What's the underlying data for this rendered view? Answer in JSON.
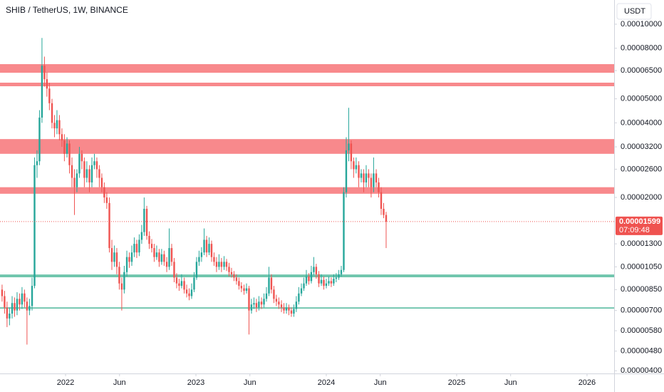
{
  "chart_data": {
    "type": "candlestick",
    "title": "SHIB / TetherUS, 1W, BINANCE",
    "currency": "USDT",
    "log_scale": true,
    "up_color": "#26a69a",
    "down_color": "#ef5350",
    "xlim": [
      2021.497,
      2026.208
    ],
    "xticks": [
      {
        "value": 2022,
        "label": "2022"
      },
      {
        "value": 2022.414,
        "label": "Jun"
      },
      {
        "value": 2023,
        "label": "2023"
      },
      {
        "value": 2023.414,
        "label": "Jun"
      },
      {
        "value": 2024,
        "label": "2024"
      },
      {
        "value": 2024.414,
        "label": "Jun"
      },
      {
        "value": 2025,
        "label": "2025"
      },
      {
        "value": 2025.414,
        "label": "Jun"
      },
      {
        "value": 2026,
        "label": "2026"
      }
    ],
    "ylim": [
      3.9e-06,
      0.0001252
    ],
    "yticks": [
      {
        "value": 0.0001,
        "label": "0.00010000"
      },
      {
        "value": 8e-05,
        "label": "0.00008000"
      },
      {
        "value": 6.5e-05,
        "label": "0.00006500"
      },
      {
        "value": 5e-05,
        "label": "0.00005000"
      },
      {
        "value": 4e-05,
        "label": "0.00004000"
      },
      {
        "value": 3.2e-05,
        "label": "0.00003200"
      },
      {
        "value": 2.6e-05,
        "label": "0.00002600"
      },
      {
        "value": 2e-05,
        "label": "0.00002000"
      },
      {
        "value": 1.3e-05,
        "label": "0.00001300"
      },
      {
        "value": 1.05e-05,
        "label": "0.00001050"
      },
      {
        "value": 8.5e-06,
        "label": "0.00000850"
      },
      {
        "value": 7e-06,
        "label": "0.00000700"
      },
      {
        "value": 5.8e-06,
        "label": "0.00000580"
      },
      {
        "value": 4.8e-06,
        "label": "0.00000480"
      },
      {
        "value": 4e-06,
        "label": "0.00000400"
      }
    ],
    "zones": [
      {
        "low": 6.37e-05,
        "high": 6.9e-05,
        "color": "#f77c80"
      },
      {
        "low": 5.62e-05,
        "high": 5.81e-05,
        "color": "#f77c80"
      },
      {
        "low": 3e-05,
        "high": 3.44e-05,
        "color": "#f77c80"
      },
      {
        "low": 2.07e-05,
        "high": 2.2e-05,
        "color": "#f77c80"
      },
      {
        "low": 9.53e-06,
        "high": 9.78e-06,
        "color": "#5fbfa4"
      },
      {
        "low": 7.12e-06,
        "high": 7.21e-06,
        "color": "#5fbfa4"
      }
    ],
    "last_price": {
      "value": 1.599e-05,
      "label": "0.00001599"
    },
    "countdown": "07:09:48",
    "x": [
      2021.513,
      2021.532,
      2021.551,
      2021.57,
      2021.59,
      2021.609,
      2021.628,
      2021.647,
      2021.666,
      2021.685,
      2021.704,
      2021.723,
      2021.743,
      2021.762,
      2021.781,
      2021.8,
      2021.819,
      2021.838,
      2021.857,
      2021.876,
      2021.896,
      2021.915,
      2021.934,
      2021.953,
      2021.972,
      2021.991,
      2022.011,
      2022.03,
      2022.049,
      2022.068,
      2022.087,
      2022.106,
      2022.125,
      2022.144,
      2022.163,
      2022.183,
      2022.202,
      2022.221,
      2022.24,
      2022.259,
      2022.278,
      2022.297,
      2022.316,
      2022.336,
      2022.355,
      2022.374,
      2022.393,
      2022.412,
      2022.431,
      2022.45,
      2022.47,
      2022.489,
      2022.508,
      2022.527,
      2022.546,
      2022.565,
      2022.584,
      2022.603,
      2022.623,
      2022.642,
      2022.661,
      2022.68,
      2022.699,
      2022.718,
      2022.737,
      2022.756,
      2022.776,
      2022.795,
      2022.814,
      2022.833,
      2022.852,
      2022.871,
      2022.89,
      2022.91,
      2022.929,
      2022.948,
      2022.967,
      2022.986,
      2023.005,
      2023.024,
      2023.043,
      2023.063,
      2023.082,
      2023.101,
      2023.12,
      2023.139,
      2023.158,
      2023.177,
      2023.196,
      2023.216,
      2023.235,
      2023.254,
      2023.273,
      2023.292,
      2023.311,
      2023.33,
      2023.349,
      2023.369,
      2023.388,
      2023.407,
      2023.426,
      2023.445,
      2023.464,
      2023.483,
      2023.503,
      2023.522,
      2023.541,
      2023.56,
      2023.579,
      2023.598,
      2023.617,
      2023.636,
      2023.656,
      2023.675,
      2023.694,
      2023.713,
      2023.732,
      2023.751,
      2023.77,
      2023.789,
      2023.809,
      2023.828,
      2023.847,
      2023.866,
      2023.885,
      2023.904,
      2023.923,
      2023.943,
      2023.962,
      2023.981,
      2024.0,
      2024.019,
      2024.038,
      2024.057,
      2024.076,
      2024.096,
      2024.115,
      2024.134,
      2024.153,
      2024.172,
      2024.191,
      2024.21,
      2024.229,
      2024.249,
      2024.268,
      2024.287,
      2024.306,
      2024.325,
      2024.344,
      2024.363,
      2024.383,
      2024.402,
      2024.421,
      2024.44,
      2024.459
    ],
    "ohlc": [
      [
        8.5e-06,
        8.9e-06,
        7.6e-06,
        8e-06
      ],
      [
        8e-06,
        8.4e-06,
        6.8e-06,
        7.2e-06
      ],
      [
        7.2e-06,
        7.6e-06,
        6e-06,
        6.5e-06
      ],
      [
        6.5e-06,
        7.2e-06,
        6.1e-06,
        6.8e-06
      ],
      [
        6.8e-06,
        8e-06,
        6.5e-06,
        7.5e-06
      ],
      [
        7.5e-06,
        7.9e-06,
        6.6e-06,
        7e-06
      ],
      [
        7e-06,
        8.3e-06,
        6.7e-06,
        7.8e-06
      ],
      [
        7.8e-06,
        8.2e-06,
        7e-06,
        7.4e-06
      ],
      [
        7.4e-06,
        8.7e-06,
        7.1e-06,
        8.2e-06
      ],
      [
        8.2e-06,
        8.5e-06,
        7.2e-06,
        7.6e-06
      ],
      [
        7.6e-06,
        7.9e-06,
        5.1e-06,
        7e-06
      ],
      [
        7e-06,
        7.8e-06,
        6.7e-06,
        7.3e-06
      ],
      [
        7.3e-06,
        9.5e-06,
        7e-06,
        8.8e-06
      ],
      [
        8.8e-06,
        2.9e-05,
        8.6e-06,
        2.7e-05
      ],
      [
        2.7e-05,
        3.1e-05,
        2.4e-05,
        2.8e-05
      ],
      [
        2.8e-05,
        4.5e-05,
        2.7e-05,
        4.2e-05
      ],
      [
        4.2e-05,
        8.8e-05,
        4e-05,
        6.8e-05
      ],
      [
        6.8e-05,
        7.4e-05,
        5.6e-05,
        6e-05
      ],
      [
        6e-05,
        6.4e-05,
        5.1e-05,
        5.5e-05
      ],
      [
        5.5e-05,
        5.8e-05,
        4.5e-05,
        4.8e-05
      ],
      [
        4.8e-05,
        5e-05,
        3.8e-05,
        4e-05
      ],
      [
        4e-05,
        4.3e-05,
        3.5e-05,
        3.8e-05
      ],
      [
        3.8e-05,
        4.5e-05,
        3.6e-05,
        4.1e-05
      ],
      [
        4.1e-05,
        4.3e-05,
        3.4e-05,
        3.6e-05
      ],
      [
        3.6e-05,
        3.8e-05,
        3.2e-05,
        3.4e-05
      ],
      [
        3.4e-05,
        3.6e-05,
        2.8e-05,
        3e-05
      ],
      [
        3e-05,
        3.5e-05,
        2.9e-05,
        3.3e-05
      ],
      [
        3.3e-05,
        3.4e-05,
        2.5e-05,
        2.7e-05
      ],
      [
        2.7e-05,
        2.9e-05,
        2.2e-05,
        2.4e-05
      ],
      [
        2.4e-05,
        2.6e-05,
        1.7e-05,
        2.2e-05
      ],
      [
        2.2e-05,
        2.6e-05,
        2.1e-05,
        2.5e-05
      ],
      [
        2.5e-05,
        3.2e-05,
        2.4e-05,
        3e-05
      ],
      [
        3e-05,
        3.1e-05,
        2.6e-05,
        2.8e-05
      ],
      [
        2.8e-05,
        2.9e-05,
        2.2e-05,
        2.4e-05
      ],
      [
        2.4e-05,
        2.8e-05,
        2.3e-05,
        2.6e-05
      ],
      [
        2.6e-05,
        2.7e-05,
        2.1e-05,
        2.3e-05
      ],
      [
        2.3e-05,
        2.9e-05,
        2.2e-05,
        2.7e-05
      ],
      [
        2.7e-05,
        3e-05,
        2.6e-05,
        2.8e-05
      ],
      [
        2.8e-05,
        2.9e-05,
        2.4e-05,
        2.6e-05
      ],
      [
        2.6e-05,
        2.7e-05,
        2.2e-05,
        2.4e-05
      ],
      [
        2.4e-05,
        2.5e-05,
        2.1e-05,
        2.2e-05
      ],
      [
        2.2e-05,
        2.3e-05,
        1.9e-05,
        2e-05
      ],
      [
        2e-05,
        2.1e-05,
        1.8e-05,
        1.9e-05
      ],
      [
        1.9e-05,
        2e-05,
        1.2e-05,
        1.25e-05
      ],
      [
        1.25e-05,
        1.35e-05,
        1.02e-05,
        1.1e-05
      ],
      [
        1.1e-05,
        1.28e-05,
        1.05e-05,
        1.2e-05
      ],
      [
        1.2e-05,
        1.25e-05,
        9.8e-06,
        1.05e-05
      ],
      [
        1.05e-05,
        1.1e-05,
        8.5e-06,
        9e-06
      ],
      [
        9e-06,
        9.5e-06,
        7e-06,
        8.5e-06
      ],
      [
        8.5e-06,
        1.06e-05,
        8.2e-06,
        1e-05
      ],
      [
        1e-05,
        1.22e-05,
        9.6e-06,
        1.15e-05
      ],
      [
        1.15e-05,
        1.2e-05,
        1.04e-05,
        1.1e-05
      ],
      [
        1.1e-05,
        1.28e-05,
        1.06e-05,
        1.2e-05
      ],
      [
        1.2e-05,
        1.38e-05,
        1.15e-05,
        1.3e-05
      ],
      [
        1.3e-05,
        1.35e-05,
        1.14e-05,
        1.2e-05
      ],
      [
        1.2e-05,
        1.42e-05,
        1.16e-05,
        1.35e-05
      ],
      [
        1.35e-05,
        1.55e-05,
        1.3e-05,
        1.45e-05
      ],
      [
        1.45e-05,
        2e-05,
        1.4e-05,
        1.8e-05
      ],
      [
        1.8e-05,
        1.85e-05,
        1.35e-05,
        1.4e-05
      ],
      [
        1.4e-05,
        1.46e-05,
        1.24e-05,
        1.3e-05
      ],
      [
        1.3e-05,
        1.36e-05,
        1.2e-05,
        1.25e-05
      ],
      [
        1.25e-05,
        1.3e-05,
        1.1e-05,
        1.15e-05
      ],
      [
        1.15e-05,
        1.28e-05,
        1.12e-05,
        1.2e-05
      ],
      [
        1.2e-05,
        1.24e-05,
        1.05e-05,
        1.1e-05
      ],
      [
        1.1e-05,
        1.24e-05,
        1.07e-05,
        1.18e-05
      ],
      [
        1.18e-05,
        1.22e-05,
        1.06e-05,
        1.1e-05
      ],
      [
        1.1e-05,
        1.15e-05,
        1e-05,
        1.05e-05
      ],
      [
        1.05e-05,
        1.5e-05,
        1.02e-05,
        1.25e-05
      ],
      [
        1.25e-05,
        1.3e-05,
        1.06e-05,
        1.1e-05
      ],
      [
        1.1e-05,
        1.14e-05,
        9.1e-06,
        9.5e-06
      ],
      [
        9.5e-06,
        9.9e-06,
        8.6e-06,
        9e-06
      ],
      [
        9e-06,
        9.4e-06,
        8.4e-06,
        8.8e-06
      ],
      [
        8.8e-06,
        9.8e-06,
        8.6e-06,
        9.2e-06
      ],
      [
        9.2e-06,
        9.5e-06,
        8.2e-06,
        8.5e-06
      ],
      [
        8.5e-06,
        8.9e-06,
        7.9e-06,
        8.2e-06
      ],
      [
        8.2e-06,
        8.6e-06,
        7.7e-06,
        8e-06
      ],
      [
        8e-06,
        9e-06,
        7.8e-06,
        8.5e-06
      ],
      [
        8.5e-06,
        1e-05,
        8.3e-06,
        9.5e-06
      ],
      [
        9.5e-06,
        1.15e-05,
        9.3e-06,
        1.1e-05
      ],
      [
        1.1e-05,
        1.22e-05,
        1.06e-05,
        1.15e-05
      ],
      [
        1.15e-05,
        1.26e-05,
        1.1e-05,
        1.2e-05
      ],
      [
        1.2e-05,
        1.5e-05,
        1.17e-05,
        1.35e-05
      ],
      [
        1.35e-05,
        1.4e-05,
        1.15e-05,
        1.2e-05
      ],
      [
        1.2e-05,
        1.38e-05,
        1.17e-05,
        1.3e-05
      ],
      [
        1.3e-05,
        1.34e-05,
        1.1e-05,
        1.15e-05
      ],
      [
        1.15e-05,
        1.2e-05,
        1.06e-05,
        1.1e-05
      ],
      [
        1.1e-05,
        1.15e-05,
        1e-05,
        1.05e-05
      ],
      [
        1.05e-05,
        1.18e-05,
        1.02e-05,
        1.1e-05
      ],
      [
        1.1e-05,
        1.14e-05,
        1e-05,
        1.05e-05
      ],
      [
        1.05e-05,
        1.16e-05,
        1.02e-05,
        1.1e-05
      ],
      [
        1.1e-05,
        1.13e-05,
        1.01e-05,
        1.05e-05
      ],
      [
        1.05e-05,
        1.09e-05,
        9.6e-06,
        1e-05
      ],
      [
        1e-05,
        1.04e-05,
        9.5e-06,
        9.8e-06
      ],
      [
        9.8e-06,
        1.01e-05,
        9.2e-06,
        9.5e-06
      ],
      [
        9.5e-06,
        9.8e-06,
        8.9e-06,
        9.2e-06
      ],
      [
        9.2e-06,
        9.5e-06,
        8.5e-06,
        8.8e-06
      ],
      [
        8.8e-06,
        9.1e-06,
        8.3e-06,
        8.6e-06
      ],
      [
        8.6e-06,
        8.9e-06,
        8.1e-06,
        8.4e-06
      ],
      [
        8.4e-06,
        9e-06,
        8.2e-06,
        8.6e-06
      ],
      [
        8.6e-06,
        8.8e-06,
        5.6e-06,
        7e-06
      ],
      [
        7e-06,
        7.8e-06,
        6.8e-06,
        7.4e-06
      ],
      [
        7.4e-06,
        7.9e-06,
        7.1e-06,
        7.5e-06
      ],
      [
        7.5e-06,
        7.8e-06,
        6.9e-06,
        7.2e-06
      ],
      [
        7.2e-06,
        8e-06,
        7e-06,
        7.6e-06
      ],
      [
        7.6e-06,
        7.9e-06,
        7.1e-06,
        7.4e-06
      ],
      [
        7.4e-06,
        8.2e-06,
        7.2e-06,
        7.8e-06
      ],
      [
        7.8e-06,
        8.7e-06,
        7.6e-06,
        8.2e-06
      ],
      [
        8.2e-06,
        1.05e-05,
        8e-06,
        9.5e-06
      ],
      [
        9.5e-06,
        9.8e-06,
        8.2e-06,
        8.5e-06
      ],
      [
        8.5e-06,
        8.8e-06,
        7.5e-06,
        7.8e-06
      ],
      [
        7.8e-06,
        8.1e-06,
        7.3e-06,
        7.6e-06
      ],
      [
        7.6e-06,
        7.9e-06,
        7.1e-06,
        7.4e-06
      ],
      [
        7.4e-06,
        7.7e-06,
        6.9e-06,
        7.2e-06
      ],
      [
        7.2e-06,
        7.5e-06,
        6.8e-06,
        7e-06
      ],
      [
        7e-06,
        7.5e-06,
        6.8e-06,
        7.2e-06
      ],
      [
        7.2e-06,
        7.4e-06,
        6.7e-06,
        7e-06
      ],
      [
        7e-06,
        7.2e-06,
        6.6e-06,
        6.8e-06
      ],
      [
        6.8e-06,
        7.4e-06,
        6.6e-06,
        7.1e-06
      ],
      [
        7.1e-06,
        8e-06,
        6.9e-06,
        7.6e-06
      ],
      [
        7.6e-06,
        8.7e-06,
        7.4e-06,
        8.2e-06
      ],
      [
        8.2e-06,
        9e-06,
        8e-06,
        8.6e-06
      ],
      [
        8.6e-06,
        9.5e-06,
        8.4e-06,
        9e-06
      ],
      [
        9e-06,
        1.02e-05,
        8.8e-06,
        9.6e-06
      ],
      [
        9.6e-06,
        9.9e-06,
        8.9e-06,
        9.2e-06
      ],
      [
        9.2e-06,
        1.06e-05,
        9e-06,
        1e-05
      ],
      [
        1e-05,
        1.15e-05,
        9.7e-06,
        1.05e-05
      ],
      [
        1.05e-05,
        1.08e-05,
        9.4e-06,
        9.8e-06
      ],
      [
        9.8e-06,
        1.01e-05,
        8.7e-06,
        9e-06
      ],
      [
        9e-06,
        9.8e-06,
        8.8e-06,
        9.3e-06
      ],
      [
        9.3e-06,
        9.6e-06,
        8.5e-06,
        8.8e-06
      ],
      [
        8.8e-06,
        9.4e-06,
        8.6e-06,
        9e-06
      ],
      [
        9e-06,
        9.6e-06,
        8.8e-06,
        9.2e-06
      ],
      [
        9.2e-06,
        9.5e-06,
        8.7e-06,
        9e-06
      ],
      [
        9e-06,
        9.8e-06,
        8.8e-06,
        9.4e-06
      ],
      [
        9.4e-06,
        9.9e-06,
        9.1e-06,
        9.5e-06
      ],
      [
        9.5e-06,
        1.02e-05,
        9.3e-06,
        9.8e-06
      ],
      [
        9.8e-06,
        1.06e-05,
        9.6e-06,
        1.02e-05
      ],
      [
        1.02e-05,
        2.2e-05,
        1e-05,
        2.1e-05
      ],
      [
        2.1e-05,
        3.5e-05,
        2e-05,
        3.1e-05
      ],
      [
        3.1e-05,
        4.6e-05,
        2.8e-05,
        3.3e-05
      ],
      [
        3.3e-05,
        3.4e-05,
        2.6e-05,
        2.8e-05
      ],
      [
        2.8e-05,
        2.9e-05,
        2.4e-05,
        2.6e-05
      ],
      [
        2.6e-05,
        2.9e-05,
        2.5e-05,
        2.7e-05
      ],
      [
        2.7e-05,
        2.8e-05,
        2.2e-05,
        2.4e-05
      ],
      [
        2.4e-05,
        2.6e-05,
        2.3e-05,
        2.5e-05
      ],
      [
        2.5e-05,
        2.6e-05,
        2.1e-05,
        2.3e-05
      ],
      [
        2.3e-05,
        2.7e-05,
        2.2e-05,
        2.5e-05
      ],
      [
        2.5e-05,
        2.6e-05,
        2.2e-05,
        2.4e-05
      ],
      [
        2.4e-05,
        2.5e-05,
        2e-05,
        2.2e-05
      ],
      [
        2.2e-05,
        2.9e-05,
        2.1e-05,
        2.5e-05
      ],
      [
        2.5e-05,
        2.6e-05,
        2.2e-05,
        2.3e-05
      ],
      [
        2.3e-05,
        2.4e-05,
        2e-05,
        2.1e-05
      ],
      [
        2.1e-05,
        2.2e-05,
        1.7e-05,
        1.8e-05
      ],
      [
        1.8e-05,
        1.9e-05,
        1.65e-05,
        1.7e-05
      ],
      [
        1.7e-05,
        1.75e-05,
        1.25e-05,
        1.599e-05
      ]
    ]
  }
}
